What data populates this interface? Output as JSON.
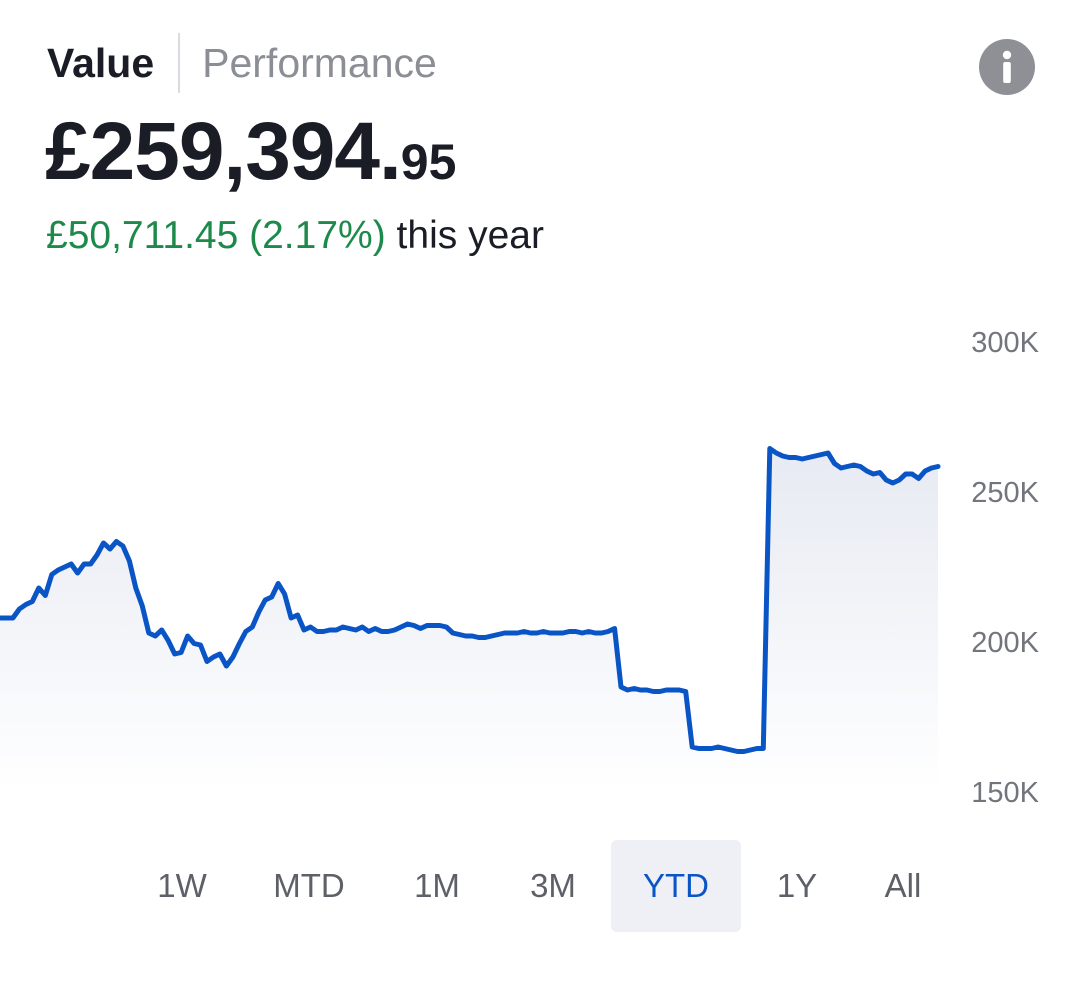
{
  "tabs": {
    "value_label": "Value",
    "performance_label": "Performance",
    "active": "Value"
  },
  "summary": {
    "total_main": "£259,394.",
    "total_pence": "95",
    "change_gain": "£50,711.45 (2.17%)",
    "change_period": "this year"
  },
  "info_button": {
    "icon": "info-icon",
    "glyph": "i"
  },
  "colors": {
    "line": "#0a55c6",
    "gain": "#1d8a4c",
    "range_active_bg": "#eef0f5",
    "range_active_text": "#0a55c6",
    "info_bg": "#8f9096"
  },
  "chart_data": {
    "type": "area",
    "y_ticks": [
      "300K",
      "250K",
      "200K",
      "150K"
    ],
    "y_tick_values": [
      300000,
      250000,
      200000,
      150000
    ],
    "ylim": [
      150000,
      300000
    ],
    "grid": false,
    "series": [
      {
        "values": [
          208000,
          208000,
          208000,
          211000,
          212500,
          213500,
          218000,
          215500,
          222500,
          224000,
          225000,
          226000,
          223000,
          226000,
          226000,
          229000,
          233000,
          231000,
          233500,
          232000,
          227000,
          218000,
          212000,
          203000,
          202000,
          204000,
          200500,
          196000,
          196500,
          202000,
          199500,
          199000,
          193500,
          195000,
          196000,
          192000,
          195000,
          199500,
          203500,
          205000,
          210000,
          214000,
          215000,
          219500,
          216000,
          208000,
          209000,
          204000,
          205000,
          203500,
          203500,
          204000,
          204000,
          205000,
          204500,
          204000,
          205000,
          203500,
          204500,
          203500,
          203500,
          204000,
          205000,
          206000,
          205500,
          204500,
          205500,
          205500,
          205500,
          205000,
          203000,
          202500,
          202000,
          202000,
          201500,
          201500,
          202000,
          202500,
          203000,
          203000,
          203000,
          203500,
          203000,
          203000,
          203500,
          203000,
          203000,
          203000,
          203500,
          203500,
          203000,
          203500,
          203000,
          203000,
          203500,
          204500,
          185000,
          184000,
          184500,
          184000,
          184000,
          183500,
          183500,
          184000,
          184000,
          184000,
          183500,
          165000,
          164500,
          164500,
          164500,
          165000,
          164500,
          164000,
          163500,
          163500,
          164000,
          164500,
          164500,
          264500,
          263000,
          262000,
          261500,
          261500,
          261000,
          261500,
          262000,
          262500,
          263000,
          259500,
          258000,
          258500,
          259000,
          258500,
          257000,
          256000,
          256500,
          254000,
          253000,
          254000,
          256000,
          256000,
          254500,
          257000,
          258000,
          258500
        ]
      }
    ]
  },
  "time_ranges": {
    "active": "YTD",
    "items": [
      {
        "label": "1W"
      },
      {
        "label": "MTD"
      },
      {
        "label": "1M"
      },
      {
        "label": "3M"
      },
      {
        "label": "YTD"
      },
      {
        "label": "1Y"
      },
      {
        "label": "All"
      }
    ]
  }
}
